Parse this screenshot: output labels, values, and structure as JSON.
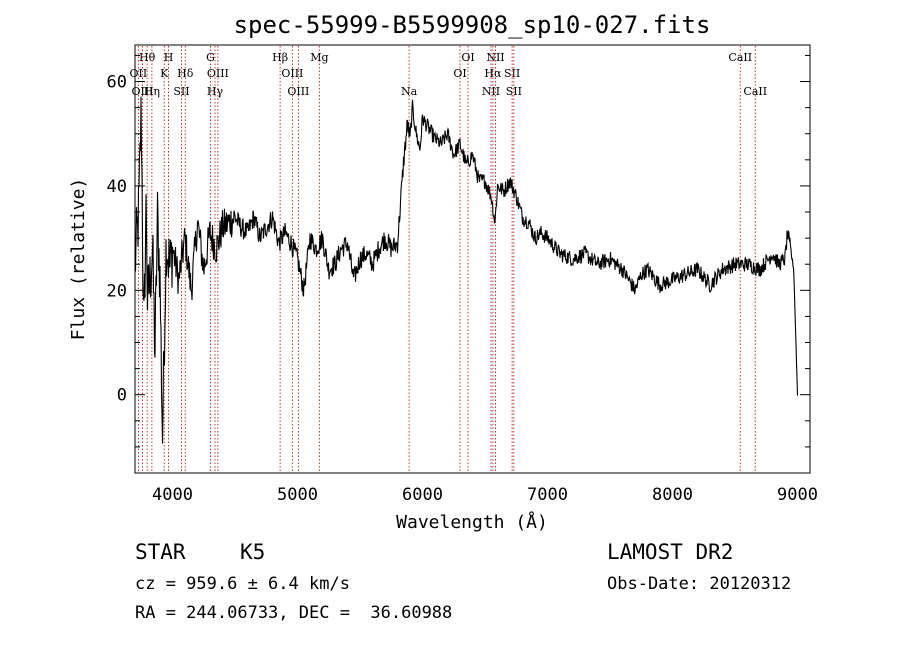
{
  "chart_data": {
    "type": "line",
    "title": "spec-55999-B5599908_sp10-027.fits",
    "xlabel": "Wavelength (Å)",
    "ylabel": "Flux (relative)",
    "xlim": [
      3700,
      9100
    ],
    "ylim": [
      -15,
      67
    ],
    "x_ticks": [
      4000,
      5000,
      6000,
      7000,
      8000,
      9000
    ],
    "y_ticks": [
      0,
      20,
      40,
      60
    ],
    "grid": false,
    "series": [
      {
        "x": [
          3700,
          3730,
          3750,
          3770,
          3790,
          3800,
          3820,
          3840,
          3860,
          3880,
          3900,
          3920,
          3950,
          3980,
          4000,
          4050,
          4100,
          4150,
          4200,
          4250,
          4300,
          4350,
          4400,
          4450,
          4500,
          4550,
          4600,
          4650,
          4700,
          4750,
          4800,
          4850,
          4900,
          4950,
          5000,
          5050,
          5100,
          5150,
          5200,
          5250,
          5300,
          5350,
          5400,
          5450,
          5500,
          5550,
          5600,
          5650,
          5700,
          5750,
          5800,
          5850,
          5880,
          5900,
          5920,
          5950,
          5980,
          6000,
          6050,
          6100,
          6150,
          6200,
          6250,
          6300,
          6350,
          6400,
          6450,
          6500,
          6550,
          6580,
          6600,
          6650,
          6700,
          6750,
          6800,
          6850,
          6900,
          6950,
          7000,
          7100,
          7200,
          7300,
          7400,
          7500,
          7600,
          7700,
          7750,
          7800,
          7900,
          8000,
          8100,
          8200,
          8300,
          8400,
          8500,
          8600,
          8700,
          8800,
          8850,
          8900,
          8920,
          8950,
          8970,
          9000
        ],
        "y": [
          25,
          35,
          55,
          10,
          38,
          18,
          22,
          28,
          8,
          34,
          22,
          -8,
          30,
          24,
          28,
          22,
          30,
          20,
          33,
          24,
          31,
          28,
          32,
          33,
          34,
          32,
          31,
          34,
          30,
          32,
          34,
          29,
          31,
          29,
          26,
          20,
          30,
          28,
          30,
          24,
          25,
          28,
          29,
          22,
          26,
          27,
          25,
          28,
          30,
          28,
          29,
          45,
          52,
          49,
          55,
          50,
          47,
          53,
          51,
          49,
          48,
          50,
          46,
          48,
          44,
          46,
          41,
          41,
          38,
          33,
          40,
          39,
          41,
          38,
          34,
          33,
          30,
          31,
          30,
          27,
          26,
          27,
          25,
          26,
          24,
          20,
          23,
          24,
          21,
          22,
          23,
          24,
          21,
          24,
          25,
          25,
          24,
          27,
          25,
          26,
          31,
          27,
          24,
          0
        ]
      }
    ],
    "line_markers": [
      {
        "label": "Hθ",
        "x": 3797,
        "row": 1
      },
      {
        "label": "OII",
        "x": 3727,
        "row": 2
      },
      {
        "label": "OIII",
        "x": 3760,
        "row": 3
      },
      {
        "label": "Hη",
        "x": 3835,
        "row": 3
      },
      {
        "label": "H",
        "x": 3968,
        "row": 1
      },
      {
        "label": "K",
        "x": 3934,
        "row": 2
      },
      {
        "label": "Hδ",
        "x": 4102,
        "row": 2
      },
      {
        "label": "SII",
        "x": 4072,
        "row": 3
      },
      {
        "label": "G",
        "x": 4304,
        "row": 1
      },
      {
        "label": "OIII",
        "x": 4363,
        "row": 2
      },
      {
        "label": "Hγ",
        "x": 4340,
        "row": 3
      },
      {
        "label": "Hβ",
        "x": 4861,
        "row": 1
      },
      {
        "label": "OIII",
        "x": 4959,
        "row": 2
      },
      {
        "label": "OIII",
        "x": 5007,
        "row": 3
      },
      {
        "label": "Mg",
        "x": 5175,
        "row": 1
      },
      {
        "label": "Na",
        "x": 5893,
        "row": 3
      },
      {
        "label": "OI",
        "x": 6364,
        "row": 1
      },
      {
        "label": "OI",
        "x": 6300,
        "row": 2
      },
      {
        "label": "NII",
        "x": 6584,
        "row": 1
      },
      {
        "label": "Hα",
        "x": 6563,
        "row": 2
      },
      {
        "label": "NII",
        "x": 6548,
        "row": 3
      },
      {
        "label": "SII",
        "x": 6717,
        "row": 2
      },
      {
        "label": "SII",
        "x": 6731,
        "row": 3
      },
      {
        "label": "CaII",
        "x": 8542,
        "row": 1
      },
      {
        "label": "CaII",
        "x": 8662,
        "row": 3
      }
    ]
  },
  "info": {
    "object_class": "STAR",
    "subclass": "K5",
    "survey": "LAMOST DR2",
    "redshift": "cz = 959.6 ± 6.4 km/s",
    "obs_date": "Obs-Date: 20120312",
    "coords": "RA = 244.06733, DEC =  36.60988"
  }
}
